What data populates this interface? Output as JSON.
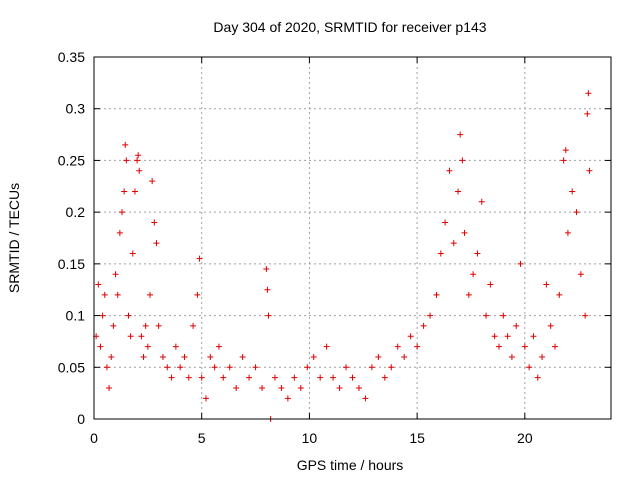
{
  "chart_data": {
    "type": "scatter",
    "title": "Day 304 of 2020, SRMTID for receiver p143",
    "xlabel": "GPS time / hours",
    "ylabel": "SRMTID / TECUs",
    "xlim": [
      0,
      24
    ],
    "ylim": [
      0,
      0.35
    ],
    "xticks": [
      0,
      5,
      10,
      15,
      20
    ],
    "xtick_labels": [
      "0",
      "5",
      "10",
      "15",
      "20"
    ],
    "yticks": [
      0,
      0.05,
      0.1,
      0.15,
      0.2,
      0.25,
      0.3,
      0.35
    ],
    "ytick_labels": [
      "0",
      "0.05",
      "0.1",
      "0.15",
      "0.2",
      "0.25",
      "0.3",
      "0.35"
    ],
    "grid": true,
    "marker": "+",
    "color": "#e00000",
    "series": [
      {
        "name": "SRMTID",
        "points": [
          [
            0.1,
            0.08
          ],
          [
            0.2,
            0.13
          ],
          [
            0.3,
            0.07
          ],
          [
            0.4,
            0.1
          ],
          [
            0.5,
            0.12
          ],
          [
            0.6,
            0.05
          ],
          [
            0.7,
            0.03
          ],
          [
            0.8,
            0.06
          ],
          [
            0.9,
            0.09
          ],
          [
            1.0,
            0.14
          ],
          [
            1.1,
            0.12
          ],
          [
            1.2,
            0.18
          ],
          [
            1.3,
            0.2
          ],
          [
            1.4,
            0.22
          ],
          [
            1.45,
            0.265
          ],
          [
            1.5,
            0.25
          ],
          [
            1.6,
            0.1
          ],
          [
            1.7,
            0.08
          ],
          [
            1.8,
            0.16
          ],
          [
            1.9,
            0.22
          ],
          [
            2.0,
            0.25
          ],
          [
            2.05,
            0.255
          ],
          [
            2.1,
            0.24
          ],
          [
            2.2,
            0.08
          ],
          [
            2.3,
            0.06
          ],
          [
            2.4,
            0.09
          ],
          [
            2.5,
            0.07
          ],
          [
            2.6,
            0.12
          ],
          [
            2.7,
            0.23
          ],
          [
            2.8,
            0.19
          ],
          [
            2.9,
            0.17
          ],
          [
            3.0,
            0.09
          ],
          [
            3.2,
            0.06
          ],
          [
            3.4,
            0.05
          ],
          [
            3.6,
            0.04
          ],
          [
            3.8,
            0.07
          ],
          [
            4.0,
            0.05
          ],
          [
            4.2,
            0.06
          ],
          [
            4.4,
            0.04
          ],
          [
            4.6,
            0.09
          ],
          [
            4.8,
            0.12
          ],
          [
            4.9,
            0.155
          ],
          [
            5.0,
            0.04
          ],
          [
            5.2,
            0.02
          ],
          [
            5.4,
            0.06
          ],
          [
            5.6,
            0.05
          ],
          [
            5.8,
            0.07
          ],
          [
            6.0,
            0.04
          ],
          [
            6.3,
            0.05
          ],
          [
            6.6,
            0.03
          ],
          [
            6.9,
            0.06
          ],
          [
            7.2,
            0.04
          ],
          [
            7.5,
            0.05
          ],
          [
            7.8,
            0.03
          ],
          [
            8.0,
            0.145
          ],
          [
            8.05,
            0.125
          ],
          [
            8.1,
            0.1
          ],
          [
            8.2,
            0.0
          ],
          [
            8.4,
            0.04
          ],
          [
            8.7,
            0.03
          ],
          [
            9.0,
            0.02
          ],
          [
            9.3,
            0.04
          ],
          [
            9.6,
            0.03
          ],
          [
            9.9,
            0.05
          ],
          [
            10.2,
            0.06
          ],
          [
            10.5,
            0.04
          ],
          [
            10.8,
            0.07
          ],
          [
            11.1,
            0.04
          ],
          [
            11.4,
            0.03
          ],
          [
            11.7,
            0.05
          ],
          [
            12.0,
            0.04
          ],
          [
            12.3,
            0.03
          ],
          [
            12.6,
            0.02
          ],
          [
            12.9,
            0.05
          ],
          [
            13.2,
            0.06
          ],
          [
            13.5,
            0.04
          ],
          [
            13.8,
            0.05
          ],
          [
            14.1,
            0.07
          ],
          [
            14.4,
            0.06
          ],
          [
            14.7,
            0.08
          ],
          [
            15.0,
            0.07
          ],
          [
            15.3,
            0.09
          ],
          [
            15.6,
            0.1
          ],
          [
            15.9,
            0.12
          ],
          [
            16.1,
            0.16
          ],
          [
            16.3,
            0.19
          ],
          [
            16.5,
            0.24
          ],
          [
            16.7,
            0.17
          ],
          [
            16.9,
            0.22
          ],
          [
            17.0,
            0.275
          ],
          [
            17.1,
            0.25
          ],
          [
            17.2,
            0.18
          ],
          [
            17.4,
            0.12
          ],
          [
            17.6,
            0.14
          ],
          [
            17.8,
            0.16
          ],
          [
            18.0,
            0.21
          ],
          [
            18.2,
            0.1
          ],
          [
            18.4,
            0.13
          ],
          [
            18.6,
            0.08
          ],
          [
            18.8,
            0.07
          ],
          [
            19.0,
            0.1
          ],
          [
            19.2,
            0.08
          ],
          [
            19.4,
            0.06
          ],
          [
            19.6,
            0.09
          ],
          [
            19.8,
            0.15
          ],
          [
            20.0,
            0.07
          ],
          [
            20.2,
            0.05
          ],
          [
            20.4,
            0.08
          ],
          [
            20.6,
            0.04
          ],
          [
            20.8,
            0.06
          ],
          [
            21.0,
            0.13
          ],
          [
            21.2,
            0.09
          ],
          [
            21.4,
            0.07
          ],
          [
            21.6,
            0.12
          ],
          [
            21.8,
            0.25
          ],
          [
            21.9,
            0.26
          ],
          [
            22.0,
            0.18
          ],
          [
            22.2,
            0.22
          ],
          [
            22.4,
            0.2
          ],
          [
            22.6,
            0.14
          ],
          [
            22.8,
            0.1
          ],
          [
            22.9,
            0.295
          ],
          [
            22.95,
            0.315
          ],
          [
            23.0,
            0.24
          ]
        ]
      }
    ]
  }
}
